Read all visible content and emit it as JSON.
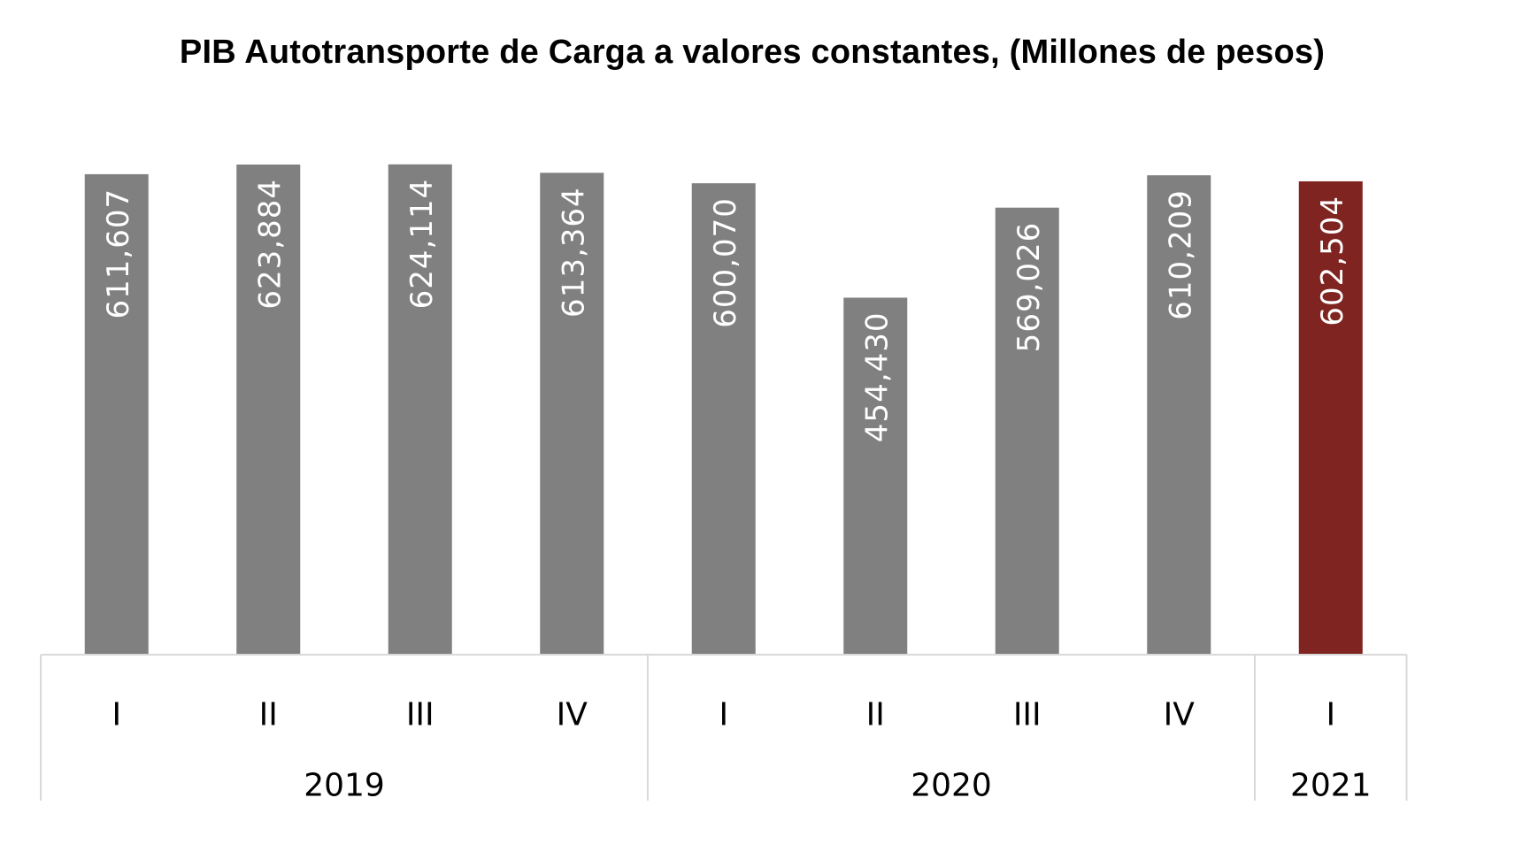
{
  "chart_data": {
    "type": "bar",
    "title": "PIB Autotransporte de Carga a valores constantes, (Millones de pesos)",
    "xlabel": "",
    "ylabel": "",
    "categories": [
      "I",
      "II",
      "III",
      "IV",
      "I",
      "II",
      "III",
      "IV",
      "I"
    ],
    "groups": [
      {
        "label": "2019",
        "count": 4
      },
      {
        "label": "2020",
        "count": 4
      },
      {
        "label": "2021",
        "count": 1
      }
    ],
    "values": [
      611607,
      623884,
      624114,
      613364,
      600070,
      454430,
      569026,
      610209,
      602504
    ],
    "value_labels": [
      "611,607",
      "623,884",
      "624,114",
      "613,364",
      "600,070",
      "454,430",
      "569,026",
      "610,209",
      "602,504"
    ],
    "bar_colors": [
      "#808080",
      "#808080",
      "#808080",
      "#808080",
      "#808080",
      "#808080",
      "#808080",
      "#808080",
      "#7f2420"
    ],
    "ylim": [
      0,
      630000
    ],
    "grid": false,
    "legend": "none"
  }
}
